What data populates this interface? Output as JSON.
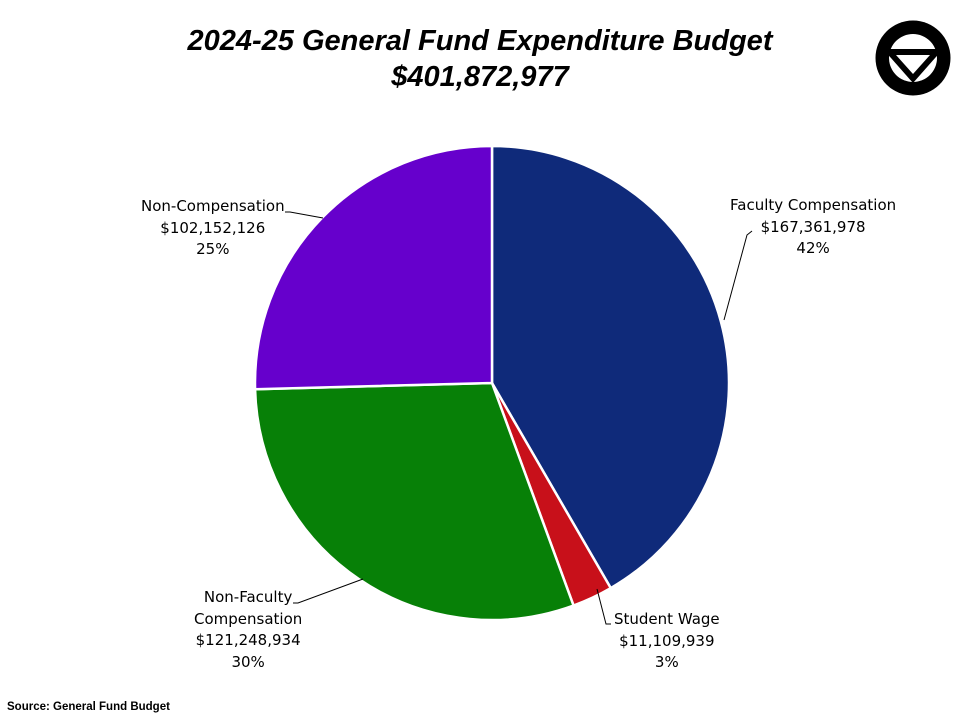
{
  "title": "2024-25 General Fund Expenditure Budget",
  "subtitle": "$401,872,977",
  "source": "Source: General Fund Budget",
  "logo_icon": "university-v-logo",
  "chart_data": {
    "type": "pie",
    "title": "2024-25 General Fund Expenditure Budget",
    "subtitle": "$401,872,977",
    "total": 401872977,
    "start_angle_deg": 0,
    "direction": "clockwise",
    "slices": [
      {
        "label": "Faculty Compensation",
        "label_lines": [
          "Faculty Compensation"
        ],
        "value": 167361978,
        "value_label": "$167,361,978",
        "percent_label": "42%",
        "color": "#0F2A7A"
      },
      {
        "label": "Student Wage",
        "label_lines": [
          "Student Wage"
        ],
        "value": 11109939,
        "value_label": "$11,109,939",
        "percent_label": "3%",
        "color": "#C8101A"
      },
      {
        "label": "Non-Faculty Compensation",
        "label_lines": [
          "Non-Faculty",
          "Compensation"
        ],
        "value": 121248934,
        "value_label": "$121,248,934",
        "percent_label": "30%",
        "color": "#078007"
      },
      {
        "label": "Non-Compensation",
        "label_lines": [
          "Non-Compensation"
        ],
        "value": 102152126,
        "value_label": "$102,152,126",
        "percent_label": "25%",
        "color": "#6600CC"
      }
    ]
  }
}
